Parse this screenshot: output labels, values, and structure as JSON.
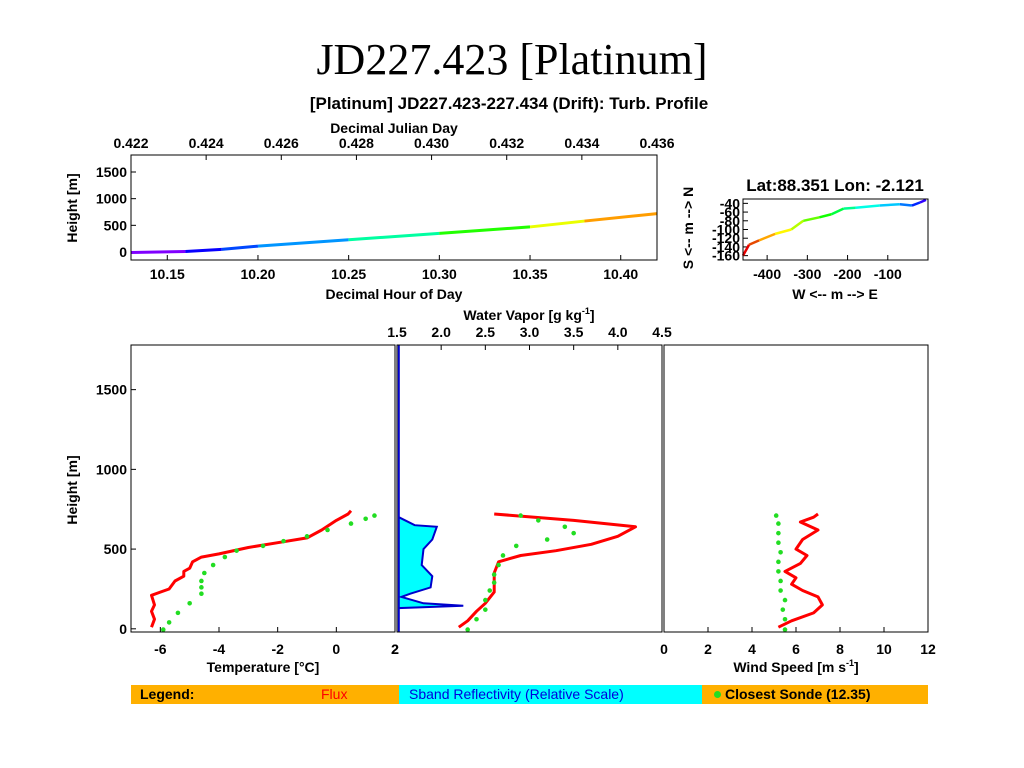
{
  "slide_title": "JD227.423 [Platinum]",
  "colors": {
    "flux": "#ff0000",
    "sonde": "#22dd22",
    "sband_fill": "#00ffff",
    "sband_line": "#0000cc",
    "legend_bg": "#ffb000"
  },
  "legend": {
    "label": "Legend:",
    "flux": "Flux",
    "sband": "Sband Reflectivity (Relative Scale)",
    "sonde": "Closest Sonde (12.35)"
  },
  "chart_data": [
    {
      "id": "timeseries",
      "type": "line",
      "title": "[Platinum] JD227.423-227.434 (Drift): Turb. Profile",
      "xlabel": "Decimal Hour of Day",
      "x2label": "Decimal Julian Day",
      "ylabel": "Height [m]",
      "xlim": [
        10.13,
        10.42
      ],
      "ylim": [
        -80,
        1650
      ],
      "x2lim": [
        0.422,
        0.436
      ],
      "xticks": [
        "10.15",
        "10.20",
        "10.25",
        "10.30",
        "10.35",
        "10.40"
      ],
      "x2ticks": [
        "0.422",
        "0.424",
        "0.426",
        "0.428",
        "0.430",
        "0.432",
        "0.434",
        "0.436"
      ],
      "yticks": [
        "0",
        "500",
        "1000",
        "1500"
      ],
      "color": "rainbow",
      "points": [
        [
          10.13,
          -10
        ],
        [
          10.16,
          10
        ],
        [
          10.18,
          50
        ],
        [
          10.2,
          110
        ],
        [
          10.25,
          230
        ],
        [
          10.3,
          350
        ],
        [
          10.35,
          470
        ],
        [
          10.38,
          580
        ],
        [
          10.42,
          720
        ]
      ]
    },
    {
      "id": "track",
      "type": "line",
      "title": "Lat:88.351 Lon:  -2.121",
      "xlabel": "W <-- m --> E",
      "ylabel": "S <-- m --> N",
      "xlim": [
        -460,
        0
      ],
      "ylim": [
        -170,
        -30
      ],
      "xticks": [
        "-400",
        "-300",
        "-200",
        "-100"
      ],
      "yticks": [
        "-40",
        "-60",
        "-80",
        "-100",
        "-120",
        "-140",
        "-160"
      ],
      "color": "rainbow",
      "points": [
        [
          -460,
          -160
        ],
        [
          -445,
          -135
        ],
        [
          -420,
          -125
        ],
        [
          -380,
          -110
        ],
        [
          -340,
          -100
        ],
        [
          -310,
          -80
        ],
        [
          -270,
          -72
        ],
        [
          -240,
          -65
        ],
        [
          -210,
          -52
        ],
        [
          -180,
          -50
        ],
        [
          -120,
          -45
        ],
        [
          -70,
          -42
        ],
        [
          -40,
          -45
        ],
        [
          -20,
          -38
        ],
        [
          -5,
          -32
        ]
      ]
    },
    {
      "id": "temperature",
      "type": "line",
      "xlabel": "Temperature [°C]",
      "ylabel": "Height [m]",
      "xlim": [
        -7,
        2
      ],
      "ylim": [
        -20,
        1780
      ],
      "xticks": [
        "-6",
        "-4",
        "-2",
        "0",
        "2"
      ],
      "yticks": [
        "0",
        "500",
        "1000",
        "1500"
      ],
      "series": [
        {
          "name": "Flux",
          "values": [
            [
              -6.3,
              10
            ],
            [
              -6.2,
              60
            ],
            [
              -6.3,
              110
            ],
            [
              -6.2,
              150
            ],
            [
              -6.3,
              210
            ],
            [
              -6.0,
              230
            ],
            [
              -5.7,
              250
            ],
            [
              -5.5,
              300
            ],
            [
              -5.2,
              330
            ],
            [
              -5.2,
              360
            ],
            [
              -5.0,
              380
            ],
            [
              -4.9,
              420
            ],
            [
              -4.6,
              450
            ],
            [
              -4.0,
              470
            ],
            [
              -3.0,
              510
            ],
            [
              -2.0,
              540
            ],
            [
              -1.0,
              570
            ],
            [
              -0.5,
              620
            ],
            [
              0.0,
              680
            ],
            [
              0.4,
              720
            ],
            [
              0.5,
              740
            ]
          ]
        },
        {
          "name": "Closest Sonde (12.35)",
          "values": [
            [
              -5.9,
              -5
            ],
            [
              -5.7,
              40
            ],
            [
              -5.4,
              100
            ],
            [
              -5.0,
              160
            ],
            [
              -4.6,
              220
            ],
            [
              -4.6,
              260
            ],
            [
              -4.6,
              300
            ],
            [
              -4.5,
              350
            ],
            [
              -4.2,
              400
            ],
            [
              -3.8,
              450
            ],
            [
              -3.4,
              490
            ],
            [
              -2.5,
              520
            ],
            [
              -1.8,
              550
            ],
            [
              -1.0,
              580
            ],
            [
              -0.3,
              620
            ],
            [
              0.5,
              660
            ],
            [
              1.0,
              690
            ],
            [
              1.3,
              710
            ]
          ]
        }
      ]
    },
    {
      "id": "water-vapor",
      "type": "line",
      "x2label": "Water Vapor [g kg",
      "x2label_sup": "-1",
      "x2label_end": "]",
      "xlim": [
        1.5,
        4.5
      ],
      "ylim": [
        -20,
        1780
      ],
      "x2ticks": [
        "1.5",
        "2.0",
        "2.5",
        "3.0",
        "3.5",
        "4.0",
        "4.5"
      ],
      "series": [
        {
          "name": "Flux",
          "values": [
            [
              2.2,
              10
            ],
            [
              2.3,
              50
            ],
            [
              2.4,
              110
            ],
            [
              2.5,
              160
            ],
            [
              2.6,
              230
            ],
            [
              2.6,
              300
            ],
            [
              2.6,
              350
            ],
            [
              2.65,
              420
            ],
            [
              2.9,
              460
            ],
            [
              3.3,
              490
            ],
            [
              3.7,
              530
            ],
            [
              4.0,
              580
            ],
            [
              4.2,
              640
            ],
            [
              3.5,
              680
            ],
            [
              2.6,
              720
            ]
          ]
        },
        {
          "name": "Closest Sonde (12.35)",
          "values": [
            [
              2.3,
              -5
            ],
            [
              2.4,
              60
            ],
            [
              2.5,
              120
            ],
            [
              2.5,
              180
            ],
            [
              2.55,
              240
            ],
            [
              2.6,
              290
            ],
            [
              2.6,
              340
            ],
            [
              2.65,
              400
            ],
            [
              2.7,
              460
            ],
            [
              2.85,
              520
            ],
            [
              3.2,
              560
            ],
            [
              3.5,
              600
            ],
            [
              3.4,
              640
            ],
            [
              3.1,
              680
            ],
            [
              2.9,
              710
            ]
          ]
        },
        {
          "name": "Sband Reflectivity (Relative Scale)",
          "values": [
            [
              1.52,
              1780
            ],
            [
              1.52,
              700
            ],
            [
              1.7,
              650
            ],
            [
              1.95,
              640
            ],
            [
              1.9,
              560
            ],
            [
              1.8,
              500
            ],
            [
              1.78,
              400
            ],
            [
              1.9,
              330
            ],
            [
              1.88,
              260
            ],
            [
              1.65,
              220
            ],
            [
              1.55,
              200
            ],
            [
              1.8,
              160
            ],
            [
              2.25,
              145
            ],
            [
              1.52,
              130
            ],
            [
              1.52,
              -20
            ]
          ]
        }
      ]
    },
    {
      "id": "wind-speed",
      "type": "line",
      "xlabel": "Wind Speed [m s",
      "xlabel_sup": "-1",
      "xlabel_end": "]",
      "xlim": [
        0,
        12
      ],
      "ylim": [
        -20,
        1780
      ],
      "xticks": [
        "0",
        "2",
        "4",
        "6",
        "8",
        "10",
        "12"
      ],
      "series": [
        {
          "name": "Flux",
          "values": [
            [
              5.2,
              10
            ],
            [
              5.8,
              50
            ],
            [
              6.8,
              100
            ],
            [
              7.2,
              150
            ],
            [
              7.0,
              200
            ],
            [
              6.3,
              240
            ],
            [
              5.8,
              280
            ],
            [
              6.0,
              320
            ],
            [
              5.5,
              360
            ],
            [
              6.2,
              410
            ],
            [
              6.5,
              460
            ],
            [
              6.0,
              500
            ],
            [
              6.3,
              560
            ],
            [
              7.0,
              620
            ],
            [
              6.2,
              670
            ],
            [
              6.8,
              700
            ],
            [
              7.0,
              720
            ]
          ]
        },
        {
          "name": "Closest Sonde (12.35)",
          "values": [
            [
              5.5,
              -5
            ],
            [
              5.5,
              60
            ],
            [
              5.4,
              120
            ],
            [
              5.5,
              180
            ],
            [
              5.3,
              240
            ],
            [
              5.3,
              300
            ],
            [
              5.2,
              360
            ],
            [
              5.2,
              420
            ],
            [
              5.3,
              480
            ],
            [
              5.2,
              540
            ],
            [
              5.2,
              600
            ],
            [
              5.2,
              660
            ],
            [
              5.1,
              710
            ]
          ]
        }
      ]
    }
  ]
}
